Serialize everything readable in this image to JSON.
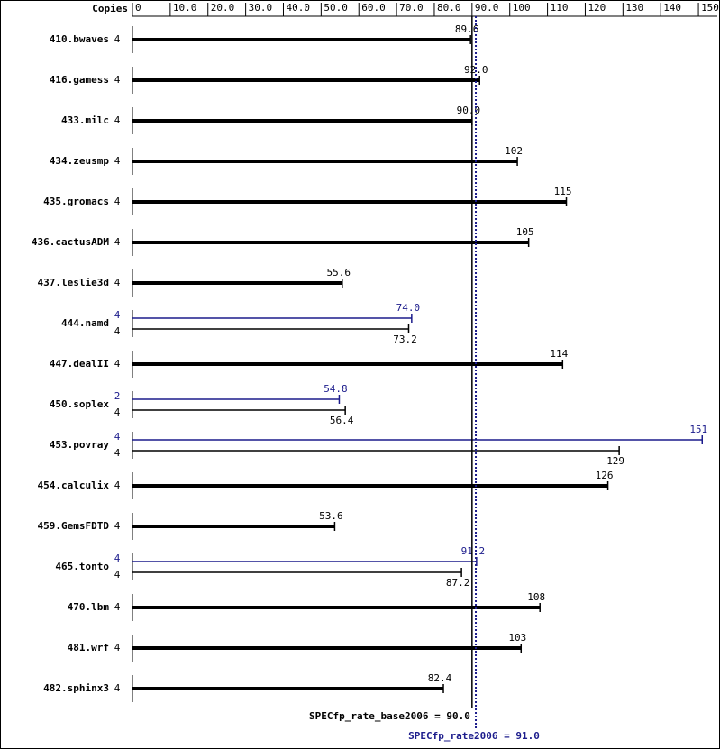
{
  "chart_data": {
    "type": "bar",
    "orientation": "horizontal",
    "copies_header": "Copies",
    "xlim": [
      0,
      155
    ],
    "xticks": [
      0,
      {
        "value": 10,
        "label": "10.0"
      },
      {
        "value": 20,
        "label": "20.0"
      },
      {
        "value": 30,
        "label": "30.0"
      },
      {
        "value": 40,
        "label": "40.0"
      },
      {
        "value": 50,
        "label": "50.0"
      },
      {
        "value": 60,
        "label": "60.0"
      },
      {
        "value": 70,
        "label": "70.0"
      },
      {
        "value": 80,
        "label": "80.0"
      },
      {
        "value": 90,
        "label": "90.0"
      },
      100,
      110,
      120,
      130,
      140,
      150
    ],
    "colors": {
      "base": "#000000",
      "peak": "#1c1c8c"
    },
    "rows": [
      {
        "name": "410.bwaves",
        "base": {
          "copies": 4,
          "value": 89.6
        }
      },
      {
        "name": "416.gamess",
        "base": {
          "copies": 4,
          "value": 92,
          "label": "92.0"
        }
      },
      {
        "name": "433.milc",
        "base": {
          "copies": 4,
          "value": 90,
          "label": "90.0"
        }
      },
      {
        "name": "434.zeusmp",
        "base": {
          "copies": 4,
          "value": 102
        }
      },
      {
        "name": "435.gromacs",
        "base": {
          "copies": 4,
          "value": 115
        }
      },
      {
        "name": "436.cactusADM",
        "base": {
          "copies": 4,
          "value": 105
        }
      },
      {
        "name": "437.leslie3d",
        "base": {
          "copies": 4,
          "value": 55.6
        }
      },
      {
        "name": "444.namd",
        "peak": {
          "copies": 4,
          "value": 74,
          "label": "74.0"
        },
        "base": {
          "copies": 4,
          "value": 73.2
        }
      },
      {
        "name": "447.dealII",
        "base": {
          "copies": 4,
          "value": 114
        }
      },
      {
        "name": "450.soplex",
        "peak": {
          "copies": 2,
          "value": 54.8
        },
        "base": {
          "copies": 4,
          "value": 56.4
        }
      },
      {
        "name": "453.povray",
        "peak": {
          "copies": 4,
          "value": 151
        },
        "base": {
          "copies": 4,
          "value": 129
        }
      },
      {
        "name": "454.calculix",
        "base": {
          "copies": 4,
          "value": 126
        }
      },
      {
        "name": "459.GemsFDTD",
        "base": {
          "copies": 4,
          "value": 53.6
        }
      },
      {
        "name": "465.tonto",
        "peak": {
          "copies": 4,
          "value": 91.2
        },
        "base": {
          "copies": 4,
          "value": 87.2
        }
      },
      {
        "name": "470.lbm",
        "base": {
          "copies": 4,
          "value": 108
        }
      },
      {
        "name": "481.wrf",
        "base": {
          "copies": 4,
          "value": 103
        }
      },
      {
        "name": "482.sphinx3",
        "base": {
          "copies": 4,
          "value": 82.4
        }
      }
    ],
    "reference_lines": [
      {
        "name": "base",
        "label": "SPECfp_rate_base2006 = 90.0",
        "value": 90,
        "color": "#000000",
        "style": "solid"
      },
      {
        "name": "peak",
        "label": "SPECfp_rate2006 = 91.0",
        "value": 91,
        "color": "#1c1c8c",
        "style": "dotted"
      }
    ]
  }
}
